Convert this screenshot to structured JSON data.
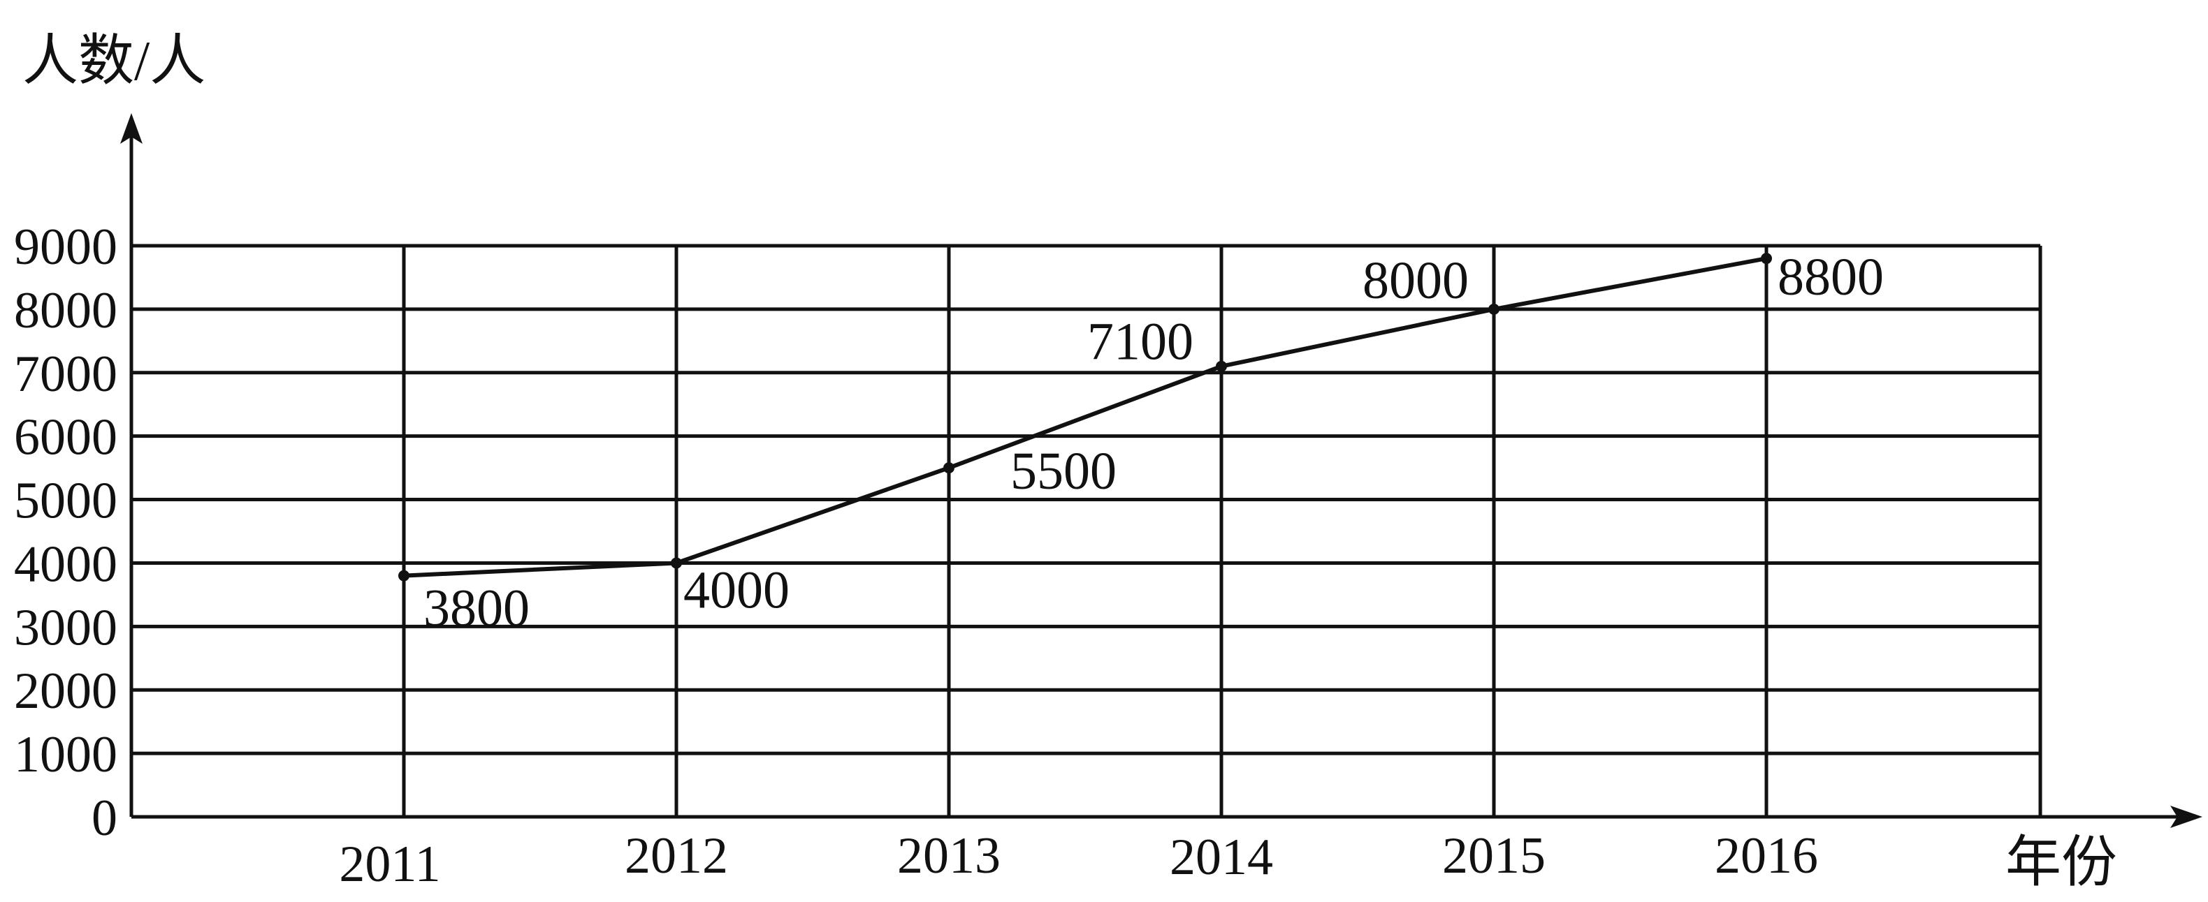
{
  "chart_data": {
    "type": "line",
    "title": "",
    "xlabel": "年份",
    "ylabel": "人数/人",
    "categories": [
      "2011",
      "2012",
      "2013",
      "2014",
      "2015",
      "2016"
    ],
    "series": [
      {
        "name": "人数",
        "values": [
          3800,
          4000,
          5500,
          7100,
          8000,
          8800
        ]
      }
    ],
    "data_labels": [
      "3800",
      "4000",
      "5500",
      "7100",
      "8000",
      "8800"
    ],
    "y_ticks": [
      0,
      1000,
      2000,
      3000,
      4000,
      5000,
      6000,
      7000,
      8000,
      9000
    ],
    "y_tick_labels": [
      "0",
      "1000",
      "2000",
      "3000",
      "4000",
      "5000",
      "6000",
      "7000",
      "8000",
      "9000"
    ],
    "ylim": [
      0,
      9000
    ],
    "grid": true,
    "colors": {
      "line": "#111111",
      "grid": "#111111",
      "background": "#ffffff"
    }
  }
}
